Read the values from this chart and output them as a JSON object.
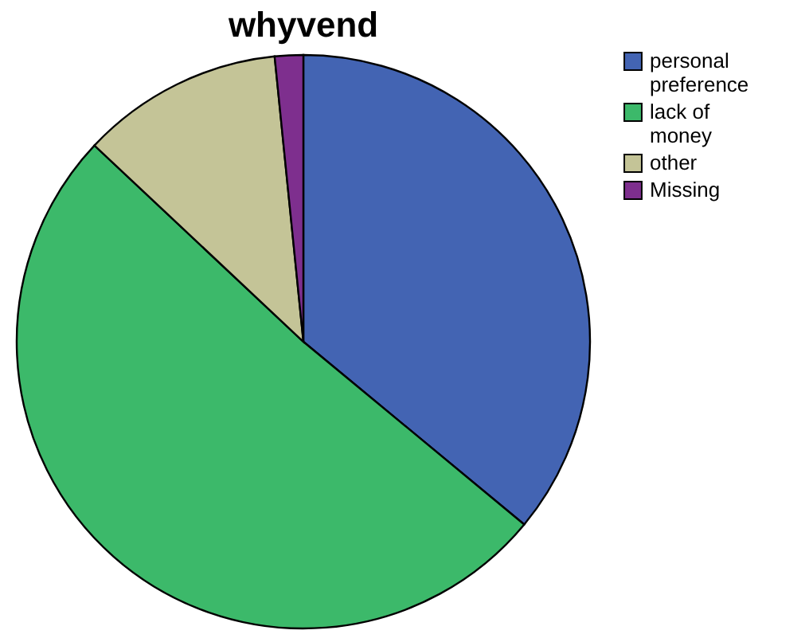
{
  "chart_data": {
    "type": "pie",
    "title": "whyvend",
    "categories": [
      "personal preference",
      "lack of money",
      "other",
      "Missing"
    ],
    "values": [
      36,
      51,
      11.4,
      1.6
    ],
    "colors": [
      "#4364b3",
      "#3cb96a",
      "#c4c497",
      "#7e2f8e"
    ],
    "legend": "right"
  }
}
